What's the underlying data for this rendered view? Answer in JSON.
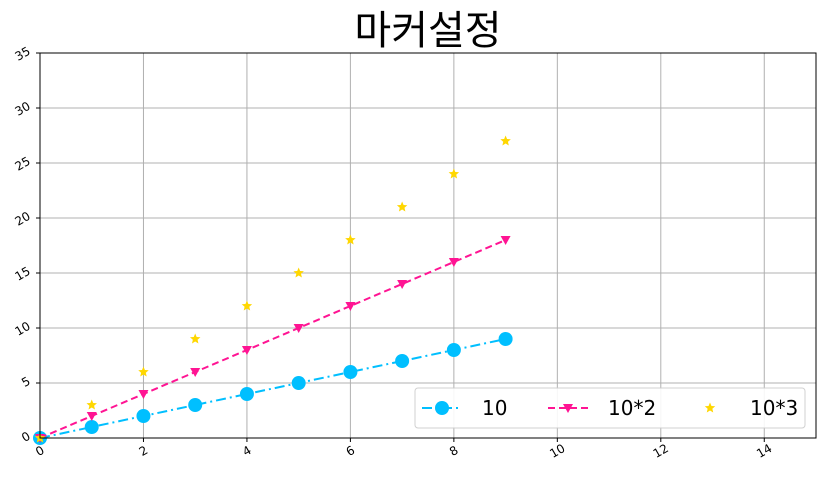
{
  "chart_data": {
    "type": "line",
    "title": "마커설정",
    "x": [
      0,
      1,
      2,
      3,
      4,
      5,
      6,
      7,
      8,
      9
    ],
    "xlim": [
      0,
      15
    ],
    "ylim": [
      0,
      35
    ],
    "xticks": [
      "0",
      "2",
      "4",
      "6",
      "8",
      "10",
      "12",
      "14"
    ],
    "yticks": [
      "0",
      "5",
      "10",
      "15",
      "20",
      "25",
      "30",
      "35"
    ],
    "grid": true,
    "legend_position": "lower right",
    "series": [
      {
        "name": "10",
        "values": [
          0,
          1,
          2,
          3,
          4,
          5,
          6,
          7,
          8,
          9
        ],
        "color": "#00bfff",
        "line": "dashdot",
        "marker": "circle"
      },
      {
        "name": "10*2",
        "values": [
          0,
          2,
          4,
          6,
          8,
          10,
          12,
          14,
          16,
          18
        ],
        "color": "#ff1493",
        "line": "dashed",
        "marker": "triangle-down"
      },
      {
        "name": "10*3",
        "values": [
          0,
          3,
          6,
          9,
          12,
          15,
          18,
          21,
          24,
          27
        ],
        "color": "#ffd700",
        "line": "none",
        "marker": "star"
      }
    ]
  }
}
